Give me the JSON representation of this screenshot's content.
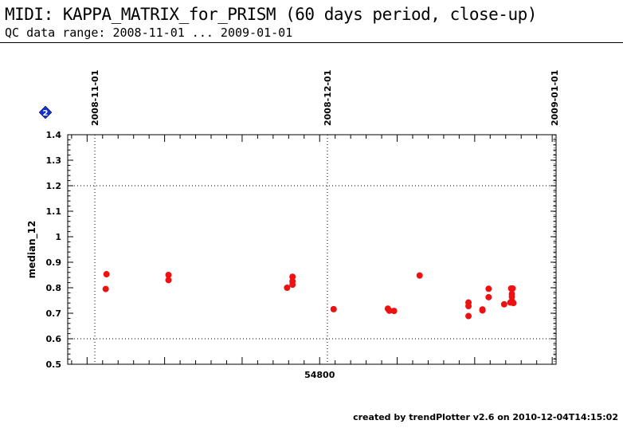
{
  "header": {
    "title": "MIDI: KAPPA_MATRIX_for_PRISM (60 days period, close-up)",
    "subtitle": "QC data range: 2008-11-01 ... 2009-01-01"
  },
  "footer": {
    "credit": "created by trendPlotter v2.6 on 2010-12-04T14:15:02"
  },
  "badge": {
    "label": "2",
    "color": "#1030d0"
  },
  "chart_data": {
    "type": "scatter",
    "title": "MIDI: KAPPA_MATRIX_for_PRISM (60 days period, close-up)",
    "ylabel": "median_12",
    "xlabel": "",
    "xlim": [
      54767.5,
      54830.5
    ],
    "ylim": [
      0.5,
      1.4
    ],
    "yticks": [
      {
        "value": 0.5,
        "label": "0.5"
      },
      {
        "value": 0.6,
        "label": "0.6"
      },
      {
        "value": 0.7,
        "label": "0.7"
      },
      {
        "value": 0.8,
        "label": "0.8"
      },
      {
        "value": 0.9,
        "label": "0.9"
      },
      {
        "value": 1.0,
        "label": "1"
      },
      {
        "value": 1.1,
        "label": "1.1"
      },
      {
        "value": 1.2,
        "label": "1.2"
      },
      {
        "value": 1.3,
        "label": "1.3"
      },
      {
        "value": 1.4,
        "label": "1.4"
      }
    ],
    "xticks_labeled": [
      {
        "value": 54800,
        "label": "54800"
      }
    ],
    "xtick_minor_step": 2,
    "xtick_major_step": 10,
    "date_markers": [
      {
        "value": 54771,
        "label": "2008-11-01"
      },
      {
        "value": 54801,
        "label": "2008-12-01"
      },
      {
        "value": 54832,
        "label": "2009-01-01"
      }
    ],
    "hlines": [
      0.6,
      1.2
    ],
    "point_color": "#ee1111",
    "series": [
      {
        "points": [
          {
            "x": 54772.5,
            "y": 0.853
          },
          {
            "x": 54772.4,
            "y": 0.795
          },
          {
            "x": 54780.5,
            "y": 0.85
          },
          {
            "x": 54780.5,
            "y": 0.83
          },
          {
            "x": 54795.8,
            "y": 0.8
          },
          {
            "x": 54796.5,
            "y": 0.843
          },
          {
            "x": 54796.5,
            "y": 0.825
          },
          {
            "x": 54796.5,
            "y": 0.812
          },
          {
            "x": 54801.8,
            "y": 0.716
          },
          {
            "x": 54808.8,
            "y": 0.718
          },
          {
            "x": 54809.0,
            "y": 0.71
          },
          {
            "x": 54809.6,
            "y": 0.709
          },
          {
            "x": 54812.9,
            "y": 0.848
          },
          {
            "x": 54819.2,
            "y": 0.742
          },
          {
            "x": 54819.2,
            "y": 0.728
          },
          {
            "x": 54819.2,
            "y": 0.689
          },
          {
            "x": 54821.0,
            "y": 0.715
          },
          {
            "x": 54821.0,
            "y": 0.711
          },
          {
            "x": 54821.8,
            "y": 0.796
          },
          {
            "x": 54821.8,
            "y": 0.763
          },
          {
            "x": 54823.8,
            "y": 0.735
          },
          {
            "x": 54824.7,
            "y": 0.797
          },
          {
            "x": 54824.9,
            "y": 0.797
          },
          {
            "x": 54824.8,
            "y": 0.776
          },
          {
            "x": 54824.8,
            "y": 0.765
          },
          {
            "x": 54824.8,
            "y": 0.748
          },
          {
            "x": 54824.6,
            "y": 0.742
          },
          {
            "x": 54825.0,
            "y": 0.74
          }
        ]
      }
    ]
  }
}
